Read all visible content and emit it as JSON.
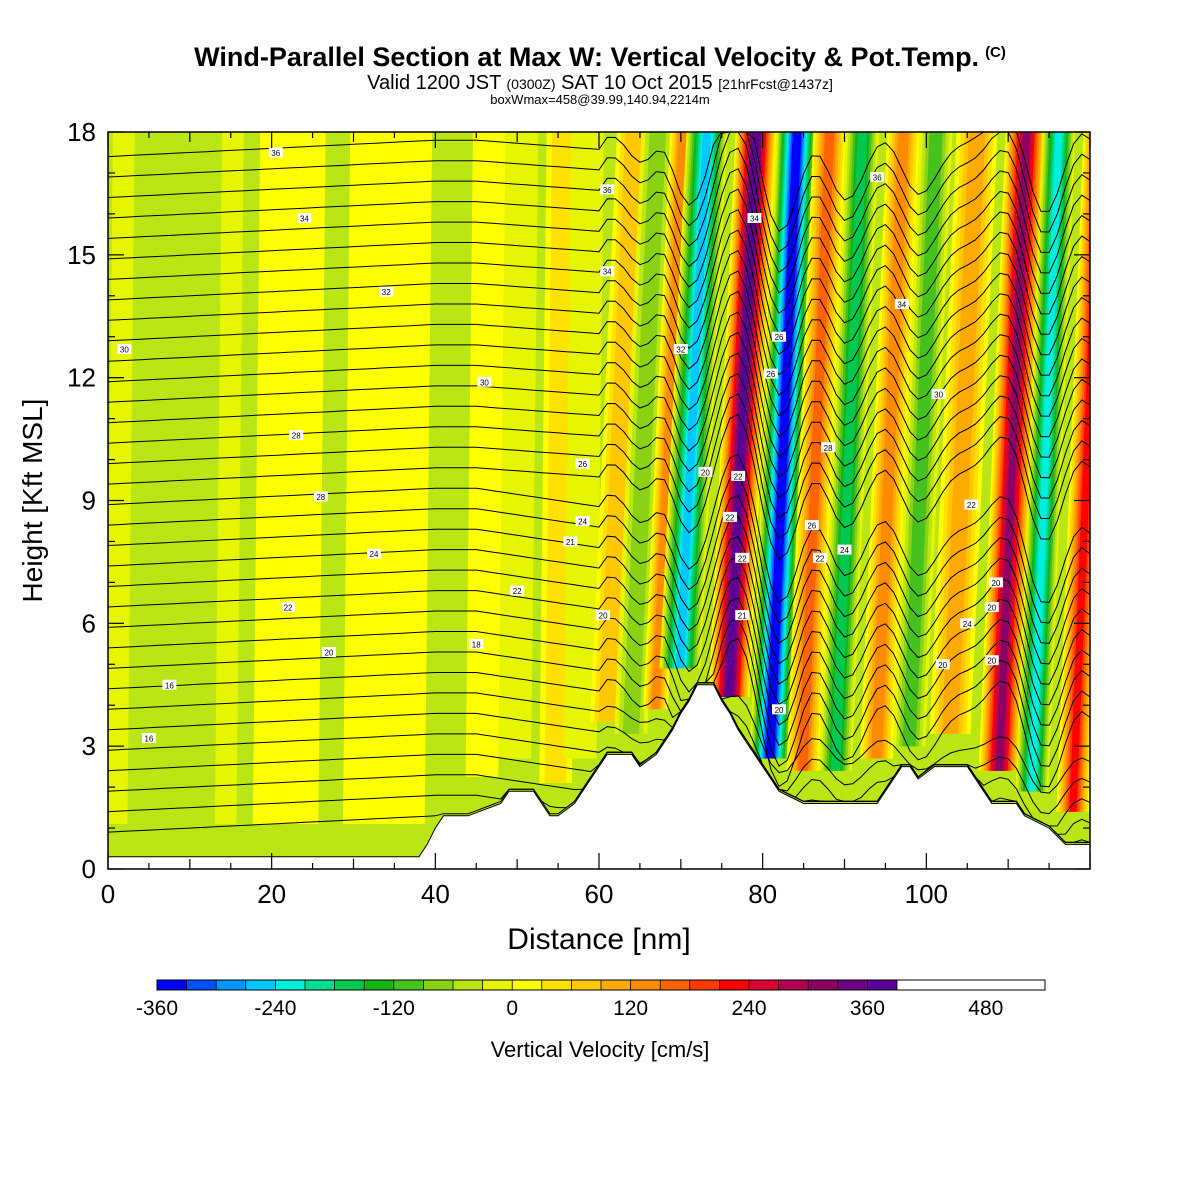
{
  "title": "Wind-Parallel Section at Max W: Vertical Velocity & Pot.Temp.",
  "title_mark": "(C)",
  "valid": {
    "prefix": "Valid 1200 JST",
    "utc": "(0300Z)",
    "date": "SAT 10 Oct 2015",
    "forecast": "[21hrFcst@1437z]"
  },
  "box_info": "boxWmax=458@39.99,140.94,2214m",
  "chart_data": {
    "type": "heatmap",
    "xlabel": "Distance [nm]",
    "ylabel": "Height [Kft MSL]",
    "xlim": [
      0,
      120
    ],
    "ylim": [
      0,
      18
    ],
    "x_ticks": [
      "0",
      "20",
      "40",
      "60",
      "80",
      "100"
    ],
    "y_ticks": [
      "0",
      "3",
      "6",
      "9",
      "12",
      "15",
      "18"
    ],
    "grid": false,
    "colorbar": {
      "label": "Vertical Velocity [cm/s]",
      "placement": "bottom",
      "min": -360,
      "max": 510,
      "step": 30,
      "tick_labels": [
        "-360",
        "-240",
        "-120",
        "0",
        "120",
        "240",
        "360",
        "480"
      ],
      "colors": [
        "#0000ff",
        "#0050ff",
        "#0096ff",
        "#00c8ff",
        "#00eedd",
        "#00dc90",
        "#00c850",
        "#14b414",
        "#46c21e",
        "#8cd214",
        "#b9e614",
        "#e6f500",
        "#ffff00",
        "#ffe100",
        "#ffc800",
        "#ffaa00",
        "#ff8c00",
        "#ff6400",
        "#ff3c00",
        "#ff0000",
        "#dc0032",
        "#b40050",
        "#8c0064",
        "#6e0082",
        "#5a0096"
      ]
    },
    "terrain_kft": [
      [
        0,
        0.3
      ],
      [
        4,
        0.3
      ],
      [
        8,
        0.3
      ],
      [
        12,
        0.3
      ],
      [
        16,
        0.3
      ],
      [
        20,
        0.3
      ],
      [
        24,
        0.3
      ],
      [
        28,
        0.3
      ],
      [
        32,
        0.3
      ],
      [
        36,
        0.3
      ],
      [
        38,
        0.3
      ],
      [
        39,
        0.6
      ],
      [
        40,
        1.0
      ],
      [
        41,
        1.3
      ],
      [
        44,
        1.3
      ],
      [
        48,
        1.6
      ],
      [
        49,
        1.9
      ],
      [
        52,
        1.9
      ],
      [
        53,
        1.6
      ],
      [
        54,
        1.3
      ],
      [
        55,
        1.3
      ],
      [
        57,
        1.6
      ],
      [
        58,
        1.9
      ],
      [
        59,
        2.2
      ],
      [
        60,
        2.5
      ],
      [
        61,
        2.8
      ],
      [
        64,
        2.8
      ],
      [
        65,
        2.5
      ],
      [
        67,
        2.8
      ],
      [
        68,
        3.1
      ],
      [
        69,
        3.4
      ],
      [
        70,
        3.8
      ],
      [
        71,
        4.1
      ],
      [
        72,
        4.5
      ],
      [
        74,
        4.5
      ],
      [
        75,
        4.1
      ],
      [
        76,
        3.8
      ],
      [
        77,
        3.4
      ],
      [
        78,
        3.1
      ],
      [
        79,
        2.8
      ],
      [
        80,
        2.5
      ],
      [
        81,
        2.2
      ],
      [
        82,
        1.9
      ],
      [
        85,
        1.6
      ],
      [
        94,
        1.6
      ],
      [
        95,
        1.9
      ],
      [
        96,
        2.2
      ],
      [
        97,
        2.5
      ],
      [
        98,
        2.5
      ],
      [
        99,
        2.2
      ],
      [
        101,
        2.5
      ],
      [
        105,
        2.5
      ],
      [
        106,
        2.2
      ],
      [
        107,
        1.9
      ],
      [
        108,
        1.6
      ],
      [
        111,
        1.6
      ],
      [
        112,
        1.3
      ],
      [
        115,
        1.0
      ],
      [
        117,
        0.6
      ],
      [
        118,
        0.6
      ],
      [
        120,
        0.6
      ]
    ],
    "w_bands_cm_s": [
      {
        "x": 8,
        "w": -60,
        "width": 8
      },
      {
        "x": 22,
        "w": 20,
        "width": 4
      },
      {
        "x": 34,
        "w": 10,
        "width": 5
      },
      {
        "x": 46,
        "w": 40,
        "width": 2
      },
      {
        "x": 50,
        "w": -30,
        "width": 2
      },
      {
        "x": 55,
        "w": 60,
        "width": 2
      },
      {
        "x": 58,
        "w": -40,
        "width": 2
      },
      {
        "x": 62,
        "w": 90,
        "width": 2
      },
      {
        "x": 65,
        "w": -80,
        "width": 2
      },
      {
        "x": 68,
        "w": 160,
        "width": 1.5
      },
      {
        "x": 71,
        "w": -260,
        "width": 2.5
      },
      {
        "x": 77,
        "w": 390,
        "width": 2.5
      },
      {
        "x": 82,
        "w": -380,
        "width": 2.5
      },
      {
        "x": 86,
        "w": 170,
        "width": 2
      },
      {
        "x": 90,
        "w": -170,
        "width": 2
      },
      {
        "x": 95,
        "w": 150,
        "width": 2
      },
      {
        "x": 99,
        "w": -130,
        "width": 2
      },
      {
        "x": 104,
        "w": 120,
        "width": 2.5
      },
      {
        "x": 110,
        "w": 330,
        "width": 2.5
      },
      {
        "x": 114,
        "w": -230,
        "width": 2
      },
      {
        "x": 119,
        "w": 240,
        "width": 2
      }
    ],
    "theta_contour_labels": [
      {
        "text": "36",
        "x": 20.5,
        "y": 17.5
      },
      {
        "text": "36",
        "x": 61,
        "y": 16.6
      },
      {
        "text": "36",
        "x": 94,
        "y": 16.9
      },
      {
        "text": "34",
        "x": 24,
        "y": 15.9
      },
      {
        "text": "34",
        "x": 61,
        "y": 14.6
      },
      {
        "text": "34",
        "x": 79,
        "y": 15.9
      },
      {
        "text": "34",
        "x": 97,
        "y": 13.8
      },
      {
        "text": "32",
        "x": 34,
        "y": 14.1
      },
      {
        "text": "32",
        "x": 70,
        "y": 12.7
      },
      {
        "text": "30",
        "x": 2,
        "y": 12.7
      },
      {
        "text": "30",
        "x": 46,
        "y": 11.9
      },
      {
        "text": "30",
        "x": 101.5,
        "y": 11.6
      },
      {
        "text": "28",
        "x": 23,
        "y": 10.6
      },
      {
        "text": "28",
        "x": 88,
        "y": 10.3
      },
      {
        "text": "28",
        "x": 26,
        "y": 9.1
      },
      {
        "text": "26",
        "x": 58,
        "y": 9.9
      },
      {
        "text": "26",
        "x": 86,
        "y": 8.4
      },
      {
        "text": "26",
        "x": 81,
        "y": 12.1
      },
      {
        "text": "26",
        "x": 82,
        "y": 13.0
      },
      {
        "text": "24",
        "x": 32.5,
        "y": 7.7
      },
      {
        "text": "24",
        "x": 58,
        "y": 8.5
      },
      {
        "text": "24",
        "x": 90,
        "y": 7.8
      },
      {
        "text": "24",
        "x": 105,
        "y": 6.0
      },
      {
        "text": "22",
        "x": 22,
        "y": 6.4
      },
      {
        "text": "22",
        "x": 50,
        "y": 6.8
      },
      {
        "text": "22",
        "x": 77,
        "y": 9.6
      },
      {
        "text": "22",
        "x": 76,
        "y": 8.6
      },
      {
        "text": "22",
        "x": 77.5,
        "y": 7.6
      },
      {
        "text": "22",
        "x": 87,
        "y": 7.6
      },
      {
        "text": "22",
        "x": 105.5,
        "y": 8.9
      },
      {
        "text": "21",
        "x": 56.5,
        "y": 8.0
      },
      {
        "text": "21",
        "x": 77.5,
        "y": 6.2
      },
      {
        "text": "20",
        "x": 27,
        "y": 5.3
      },
      {
        "text": "20",
        "x": 60.5,
        "y": 6.2
      },
      {
        "text": "20",
        "x": 73,
        "y": 9.7
      },
      {
        "text": "20",
        "x": 82,
        "y": 3.9
      },
      {
        "text": "20",
        "x": 102,
        "y": 5.0
      },
      {
        "text": "20",
        "x": 108,
        "y": 6.4
      },
      {
        "text": "20",
        "x": 108.5,
        "y": 7.0
      },
      {
        "text": "20",
        "x": 108,
        "y": 5.1
      },
      {
        "text": "18",
        "x": 45,
        "y": 5.5
      },
      {
        "text": "16",
        "x": 7.5,
        "y": 4.5
      },
      {
        "text": "16",
        "x": 5,
        "y": 3.2
      }
    ]
  }
}
